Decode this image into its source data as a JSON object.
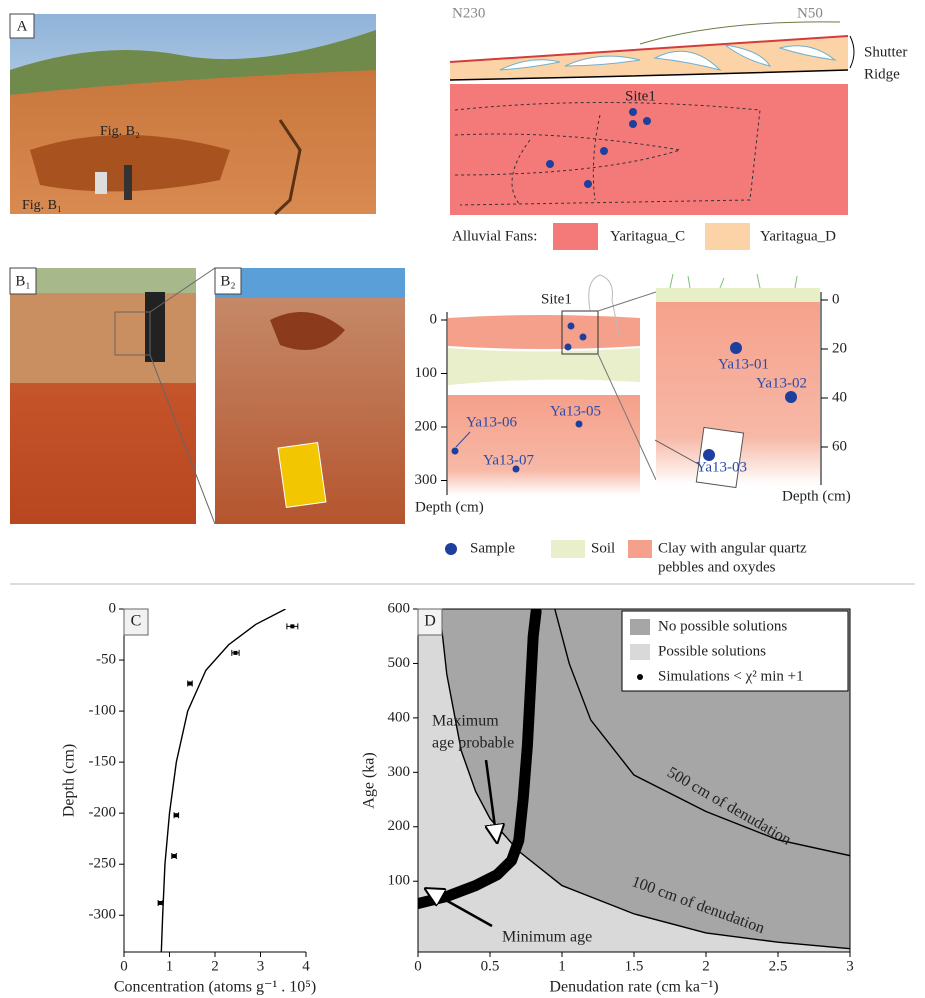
{
  "panels": {
    "a": {
      "label": "A",
      "fig_b2": "Fig. B₂",
      "fig_b1": "Fig. B₁"
    },
    "section": {
      "left": "N230",
      "right": "N50",
      "ridge": [
        "Shutter",
        "Ridge"
      ],
      "site": "Site1",
      "legend_title": "Alluvial Fans:",
      "legend": [
        "Yaritagua_C",
        "Yaritagua_D"
      ]
    },
    "b1": "B₁",
    "b2": "B₂",
    "profile": {
      "site": "Site1",
      "left_ticks": [
        0,
        100,
        200,
        300
      ],
      "left_axis": "Depth (cm)",
      "right_ticks": [
        0,
        20,
        40,
        60
      ],
      "right_axis": "Depth (cm)",
      "samples": [
        "Ya13-01",
        "Ya13-02",
        "Ya13-03",
        "Ya13-05",
        "Ya13-06",
        "Ya13-07"
      ]
    },
    "legend": {
      "sample": "Sample",
      "soil": "Soil",
      "clay": [
        "Clay with angular quartz",
        "pebbles and oxydes"
      ]
    }
  },
  "chart_data": [
    {
      "type": "scatter",
      "panel": "C",
      "x_label": "Concentration (atoms g⁻¹ . 10⁵)",
      "y_label": "Depth (cm)",
      "xlim": [
        0,
        4
      ],
      "xticks": [
        0,
        1,
        2,
        3,
        4
      ],
      "ylim": [
        -336,
        0
      ],
      "yticks": [
        0,
        -50,
        -100,
        -150,
        -200,
        -250,
        -300
      ],
      "series": [
        {
          "type": "scatter",
          "color": "#000",
          "x": [
            3.7,
            2.45,
            1.45,
            1.15,
            1.1,
            0.8
          ],
          "values": [
            -17,
            -43,
            -73,
            -202,
            -242,
            -288
          ],
          "x_errors": [
            0.12,
            0.08,
            0.05,
            0.05,
            0.05,
            0.05
          ]
        },
        {
          "type": "line",
          "color": "#000",
          "x": [
            0.82,
            0.85,
            0.9,
            1,
            1.15,
            1.4,
            1.8,
            2.3,
            2.9,
            3.55
          ],
          "values": [
            -336,
            -300,
            -250,
            -200,
            -150,
            -100,
            -60,
            -35,
            -15,
            0
          ]
        }
      ]
    },
    {
      "type": "line",
      "panel": "D",
      "x_label": "Denudation rate (cm ka⁻¹)",
      "y_label": "Age (ka)",
      "xlim": [
        0,
        3
      ],
      "xticks": [
        0,
        0.5,
        1,
        1.5,
        2,
        2.5,
        3
      ],
      "ylim": [
        -30,
        600
      ],
      "yticks": [
        100,
        200,
        300,
        400,
        500,
        600
      ],
      "legend": "upper right",
      "regions": [
        {
          "name": "No possible solutions",
          "color": "#a6a6a6"
        },
        {
          "name": "Possible solutions",
          "color": "#d9d9d9"
        }
      ],
      "series": [
        {
          "type": "line",
          "name": "100 cm of denudation",
          "color": "#000",
          "x": [
            0.15,
            0.2,
            0.3,
            0.4,
            0.5,
            0.7,
            1,
            1.5,
            2,
            2.5,
            3
          ],
          "values": [
            600,
            480,
            340,
            265,
            215,
            155,
            92,
            40,
            5,
            -12,
            -24
          ]
        },
        {
          "type": "line",
          "name": "500 cm of denudation",
          "color": "#000",
          "x": [
            0.95,
            1.05,
            1.2,
            1.5,
            2,
            2.5,
            3
          ],
          "values": [
            600,
            500,
            396,
            295,
            228,
            176,
            147
          ]
        },
        {
          "type": "scatter",
          "name": "Simulations < χ² min +1",
          "color": "#000",
          "x": [
            0,
            0.2,
            0.4,
            0.55,
            0.65,
            0.7,
            0.73,
            0.76,
            0.78,
            0.8,
            0.82
          ],
          "values": [
            59,
            72,
            92,
            112,
            138,
            175,
            250,
            350,
            450,
            550,
            595
          ]
        }
      ],
      "annotations": [
        "Maximum",
        "age probable",
        "Minimum age"
      ]
    }
  ]
}
